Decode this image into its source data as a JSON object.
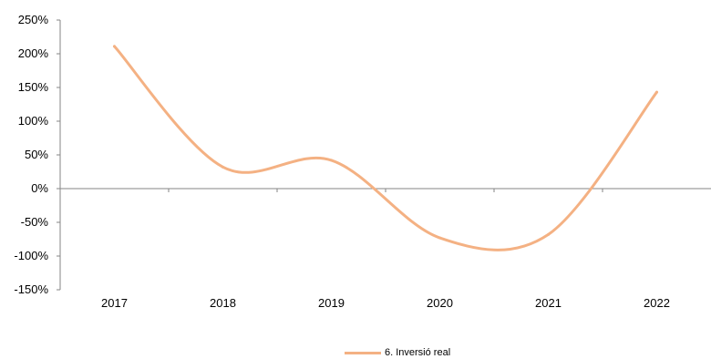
{
  "chart_data": {
    "type": "line",
    "categories": [
      "2017",
      "2018",
      "2019",
      "2020",
      "2021",
      "2022"
    ],
    "series": [
      {
        "name": "6. Inversió real",
        "values": [
          211,
          32,
          42,
          -73,
          -68,
          143
        ],
        "color": "#f4b183"
      }
    ],
    "y_ticks": [
      250,
      200,
      150,
      100,
      50,
      0,
      -50,
      -100,
      -150
    ],
    "y_tick_labels": [
      "250%",
      "200%",
      "150%",
      "100%",
      "50%",
      "0%",
      "-50%",
      "-100%",
      "-150%"
    ],
    "ylim": [
      -150,
      250
    ],
    "smooth": true,
    "legend_position": "bottom",
    "grid": false
  }
}
